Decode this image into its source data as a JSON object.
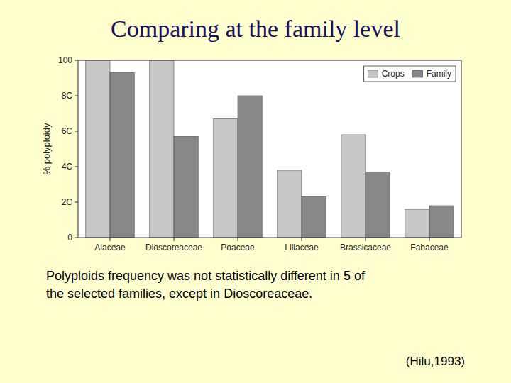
{
  "chart_data": {
    "type": "bar",
    "title": "Comparing at the family level",
    "categories": [
      "Alaceae",
      "Dioscoreaceae",
      "Poaceae",
      "Liliaceae",
      "Brassicaceae",
      "Fabaceae"
    ],
    "series": [
      {
        "name": "Crops",
        "color": "#c8c8c8",
        "values": [
          100,
          100,
          67,
          38,
          58,
          16
        ]
      },
      {
        "name": "Family",
        "color": "#888888",
        "values": [
          93,
          57,
          80,
          23,
          37,
          18
        ]
      }
    ],
    "ylabel": "% polyploidy",
    "ylim": [
      0,
      100
    ],
    "yticks": [
      0,
      {
        "value": 20,
        "label": "2C"
      },
      {
        "value": 40,
        "label": "4C"
      },
      {
        "value": 60,
        "label": "6C"
      },
      {
        "value": 80,
        "label": "8C"
      },
      100
    ],
    "grid": false,
    "legend": "upper right",
    "annotations": [
      "Polyploids frequency was not statistically different in 5 of\nthe selected families, except in Dioscoreaceae.",
      "(Hilu,1993)"
    ]
  }
}
